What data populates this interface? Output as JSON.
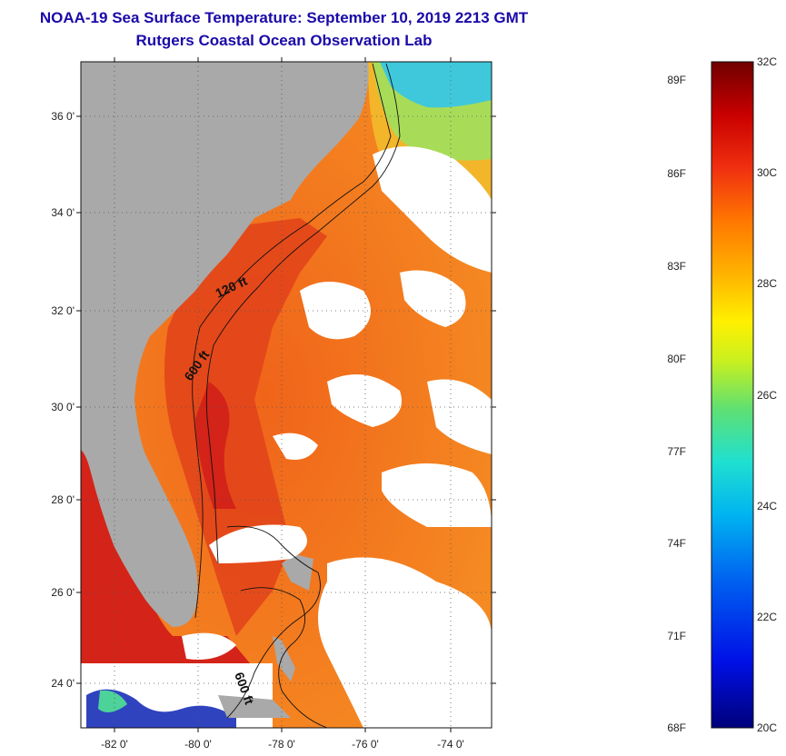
{
  "title": {
    "line1": "NOAA-19 Sea Surface Temperature:  September 10, 2019 2213 GMT",
    "line2": "Rutgers Coastal Ocean Observation Lab"
  },
  "map": {
    "lat_ticks": [
      {
        "value": 36,
        "label": "36 0'"
      },
      {
        "value": 34,
        "label": "34 0'"
      },
      {
        "value": 32,
        "label": "32 0'"
      },
      {
        "value": 30,
        "label": "30 0'"
      },
      {
        "value": 28,
        "label": "28 0'"
      },
      {
        "value": 26,
        "label": "26 0'"
      },
      {
        "value": 24,
        "label": "24 0'"
      }
    ],
    "lon_ticks": [
      {
        "value": -82,
        "label": "-82 0'"
      },
      {
        "value": -80,
        "label": "-80 0'"
      },
      {
        "value": -78,
        "label": "-78 0'"
      },
      {
        "value": -76,
        "label": "-76 0'"
      },
      {
        "value": -74,
        "label": "-74 0'"
      }
    ],
    "contour_labels": [
      "120 ft",
      "600 ft",
      "600 ft"
    ],
    "colors": {
      "land": "#a9a9a9",
      "cloud": "#ffffff",
      "warm_ocean": "#f05a14",
      "hot_ocean": "#d42318",
      "mid_ocean": "#f39a1e",
      "cool_ocean": "#7ad66a",
      "cold_ocean": "#2bb4e8",
      "coldest_ocean": "#1a2fb8"
    }
  },
  "colorbar": {
    "fahrenheit_labels": [
      "89F",
      "86F",
      "83F",
      "80F",
      "77F",
      "74F",
      "71F",
      "68F"
    ],
    "celsius_labels": [
      "32C",
      "30C",
      "28C",
      "26C",
      "24C",
      "22C",
      "20C"
    ]
  }
}
